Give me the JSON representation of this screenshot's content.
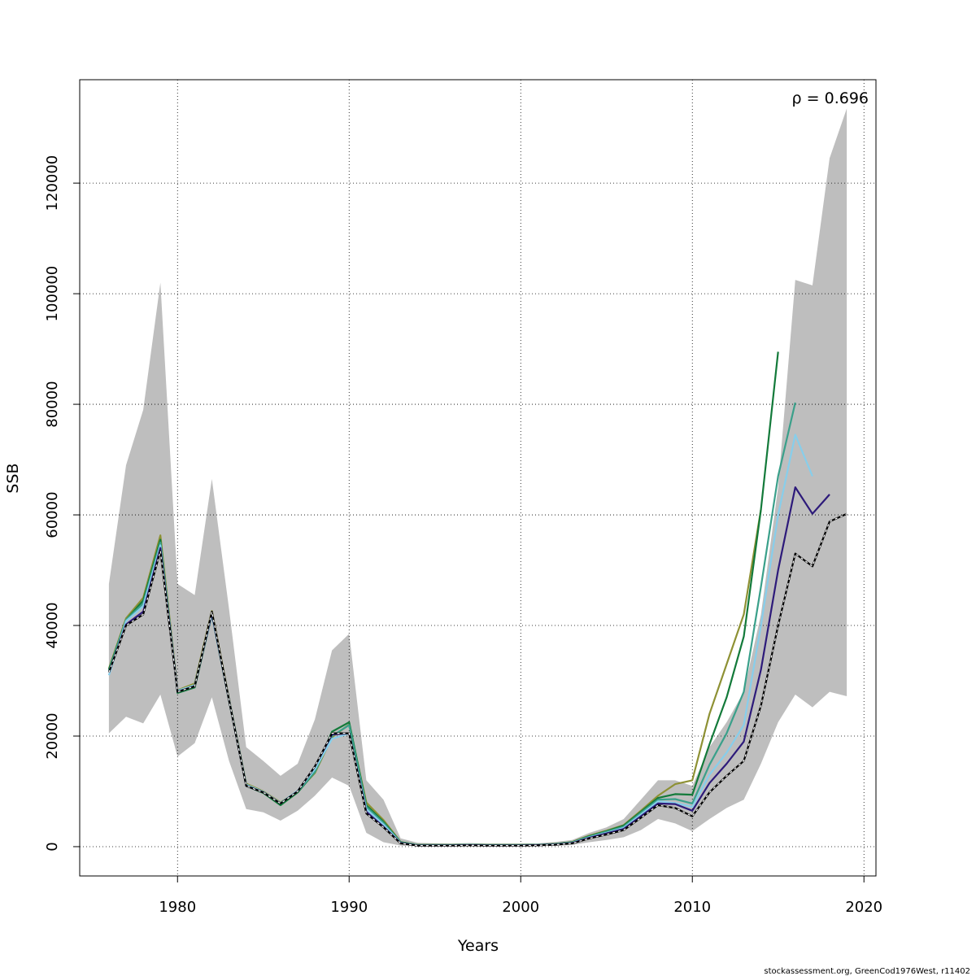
{
  "chart_data": {
    "type": "line",
    "title": "",
    "xlabel": "Years",
    "ylabel": "SSB",
    "xlim": [
      1974.3,
      2020.7
    ],
    "ylim": [
      -5300,
      138700
    ],
    "xticks": [
      1980,
      1990,
      2000,
      2010,
      2020
    ],
    "yticks": [
      0,
      20000,
      40000,
      60000,
      80000,
      100000,
      120000
    ],
    "xtick_labels": [
      "1980",
      "1990",
      "2000",
      "2010",
      "2020"
    ],
    "ytick_labels": [
      "0",
      "20000",
      "40000",
      "60000",
      "80000",
      "100000",
      "120000"
    ],
    "grid": true,
    "annotation": "ρ = 0.696",
    "footer": "stockassessment.org, GreenCod1976West, r11402",
    "confidence_band": {
      "color": "#bebebe",
      "x": [
        1976,
        1977,
        1978,
        1979,
        1980,
        1981,
        1982,
        1983,
        1984,
        1985,
        1986,
        1987,
        1988,
        1989,
        1990,
        1991,
        1992,
        1993,
        1994,
        1995,
        1996,
        1997,
        1998,
        1999,
        2000,
        2001,
        2002,
        2003,
        2004,
        2005,
        2006,
        2007,
        2008,
        2009,
        2010,
        2011,
        2012,
        2013,
        2014,
        2015,
        2016,
        2017,
        2018,
        2019
      ],
      "upper": [
        47500,
        69000,
        79000,
        102000,
        47500,
        45500,
        66500,
        43000,
        18000,
        15500,
        12800,
        15000,
        23000,
        35500,
        38500,
        12000,
        8500,
        1500,
        700,
        600,
        550,
        650,
        550,
        550,
        550,
        600,
        850,
        1200,
        2500,
        3500,
        5000,
        8500,
        12000,
        12000,
        11000,
        18000,
        22500,
        28000,
        42000,
        65000,
        102500,
        101500,
        124500,
        133500
      ],
      "lower": [
        20500,
        23500,
        22300,
        27500,
        16300,
        18700,
        27000,
        15500,
        6800,
        6200,
        4700,
        6500,
        9200,
        12500,
        11000,
        2500,
        800,
        200,
        100,
        100,
        100,
        100,
        100,
        100,
        100,
        100,
        150,
        300,
        800,
        1200,
        1700,
        3000,
        5000,
        4200,
        2800,
        5000,
        7000,
        8500,
        15000,
        22500,
        27500,
        25200,
        28000,
        27200
      ]
    },
    "series": [
      {
        "color": "#000000",
        "dashed": true,
        "x": [
          1976,
          1977,
          1978,
          1979,
          1980,
          1981,
          1982,
          1983,
          1984,
          1985,
          1986,
          1987,
          1988,
          1989,
          1990,
          1991,
          1992,
          1993,
          1994,
          1995,
          1996,
          1997,
          1998,
          1999,
          2000,
          2001,
          2002,
          2003,
          2004,
          2005,
          2006,
          2007,
          2008,
          2009,
          2010,
          2011,
          2012,
          2013,
          2014,
          2015,
          2016,
          2017,
          2018,
          2019
        ],
        "values": [
          31500,
          40000,
          42000,
          53500,
          28000,
          29000,
          42500,
          26500,
          11000,
          9800,
          7800,
          10000,
          14500,
          20500,
          20500,
          6000,
          3500,
          600,
          200,
          200,
          200,
          250,
          200,
          200,
          200,
          250,
          350,
          600,
          1500,
          2200,
          3000,
          5200,
          7500,
          7000,
          5500,
          9800,
          12800,
          15500,
          25500,
          40000,
          53000,
          50700,
          58800,
          60200
        ]
      },
      {
        "color": "#2d1a7a",
        "x": [
          1976,
          1977,
          1978,
          1979,
          1980,
          1981,
          1982,
          1983,
          1984,
          1985,
          1986,
          1987,
          1988,
          1989,
          1990,
          1991,
          1992,
          1993,
          1994,
          1995,
          1996,
          1997,
          1998,
          1999,
          2000,
          2001,
          2002,
          2003,
          2004,
          2005,
          2006,
          2007,
          2008,
          2009,
          2010,
          2011,
          2012,
          2013,
          2014,
          2015,
          2016,
          2017,
          2018
        ],
        "values": [
          31500,
          40200,
          42500,
          54000,
          28000,
          29000,
          42300,
          26500,
          11000,
          9800,
          7800,
          10000,
          14500,
          20300,
          20500,
          6300,
          3600,
          650,
          220,
          220,
          220,
          270,
          220,
          220,
          220,
          270,
          380,
          650,
          1600,
          2400,
          3200,
          5500,
          7800,
          7700,
          6500,
          11500,
          15000,
          19000,
          32000,
          50000,
          65000,
          60200,
          63700
        ]
      },
      {
        "color": "#87ceeb",
        "x": [
          1976,
          1977,
          1978,
          1979,
          1980,
          1981,
          1982,
          1983,
          1984,
          1985,
          1986,
          1987,
          1988,
          1989,
          1990,
          1991,
          1992,
          1993,
          1994,
          1995,
          1996,
          1997,
          1998,
          1999,
          2000,
          2001,
          2002,
          2003,
          2004,
          2005,
          2006,
          2007,
          2008,
          2009,
          2010,
          2011,
          2012,
          2013,
          2014,
          2015,
          2016,
          2017
        ],
        "values": [
          31000,
          40800,
          43500,
          54500,
          28200,
          29200,
          42000,
          26600,
          11200,
          9900,
          7900,
          10100,
          14000,
          19500,
          20500,
          6800,
          4000,
          700,
          250,
          250,
          250,
          300,
          250,
          250,
          250,
          300,
          400,
          700,
          1700,
          2500,
          3400,
          5800,
          8200,
          7900,
          7200,
          13000,
          17000,
          22000,
          40000,
          60000,
          74500,
          67000
        ]
      },
      {
        "color": "#3aa08a",
        "x": [
          1976,
          1977,
          1978,
          1979,
          1980,
          1981,
          1982,
          1983,
          1984,
          1985,
          1986,
          1987,
          1988,
          1989,
          1990,
          1991,
          1992,
          1993,
          1994,
          1995,
          1996,
          1997,
          1998,
          1999,
          2000,
          2001,
          2002,
          2003,
          2004,
          2005,
          2006,
          2007,
          2008,
          2009,
          2010,
          2011,
          2012,
          2013,
          2014,
          2015,
          2016
        ],
        "values": [
          31800,
          41000,
          44000,
          55000,
          28000,
          29200,
          42000,
          26600,
          11200,
          9900,
          7800,
          10000,
          13500,
          20000,
          22000,
          7200,
          4300,
          750,
          270,
          270,
          270,
          320,
          270,
          270,
          270,
          320,
          430,
          750,
          1800,
          2700,
          3600,
          6100,
          8500,
          8600,
          7800,
          14800,
          20500,
          28000,
          47000,
          67000,
          80300
        ]
      },
      {
        "color": "#137a3a",
        "x": [
          1976,
          1977,
          1978,
          1979,
          1980,
          1981,
          1982,
          1983,
          1984,
          1985,
          1986,
          1987,
          1988,
          1989,
          1990,
          1991,
          1992,
          1993,
          1994,
          1995,
          1996,
          1997,
          1998,
          1999,
          2000,
          2001,
          2002,
          2003,
          2004,
          2005,
          2006,
          2007,
          2008,
          2009,
          2010,
          2011,
          2012,
          2013,
          2014,
          2015
        ],
        "values": [
          32000,
          41000,
          44500,
          55500,
          27800,
          28800,
          42000,
          26400,
          11000,
          9700,
          7500,
          9800,
          13500,
          20800,
          22500,
          7500,
          4500,
          800,
          300,
          300,
          300,
          350,
          300,
          300,
          300,
          350,
          480,
          800,
          1900,
          2800,
          3800,
          6300,
          8800,
          9500,
          9400,
          18500,
          27000,
          38000,
          61000,
          89500
        ]
      },
      {
        "color": "#8e9134",
        "x": [
          1976,
          1977,
          1978,
          1979,
          1980,
          1981,
          1982,
          1983,
          1984,
          1985,
          1986,
          1987,
          1988,
          1989,
          1990,
          1991,
          1992,
          1993,
          1994,
          1995,
          1996,
          1997,
          1998,
          1999,
          2000,
          2001,
          2002,
          2003,
          2004,
          2005,
          2006,
          2007,
          2008,
          2009,
          2010,
          2011,
          2012,
          2013,
          2014
        ],
        "values": [
          32200,
          41300,
          45000,
          56300,
          28300,
          29500,
          42600,
          26800,
          11400,
          10000,
          8000,
          10000,
          13300,
          19800,
          22100,
          8000,
          4800,
          850,
          320,
          320,
          320,
          370,
          320,
          320,
          320,
          370,
          500,
          850,
          2000,
          2900,
          3900,
          6500,
          9200,
          11300,
          12000,
          24000,
          33000,
          42000,
          61000
        ]
      }
    ]
  }
}
